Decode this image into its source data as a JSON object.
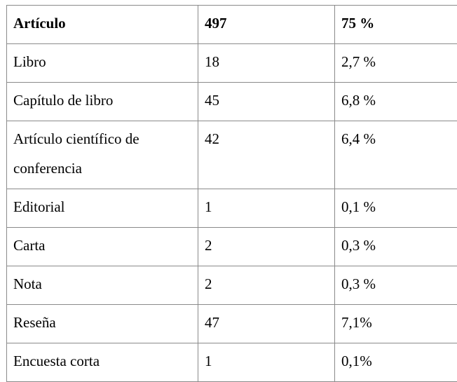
{
  "table": {
    "rows": [
      {
        "label": "Artículo",
        "count": "497",
        "percent": "75 %"
      },
      {
        "label": "Libro",
        "count": "18",
        "percent": "2,7 %"
      },
      {
        "label": "Capítulo de libro",
        "count": "45",
        "percent": "6,8 %"
      },
      {
        "label": "Artículo científico de conferencia",
        "count": "42",
        "percent": "6,4 %"
      },
      {
        "label": "Editorial",
        "count": "1",
        "percent": "0,1 %"
      },
      {
        "label": "Carta",
        "count": "2",
        "percent": "0,3 %"
      },
      {
        "label": "Nota",
        "count": "2",
        "percent": "0,3 %"
      },
      {
        "label": "Reseña",
        "count": "47",
        "percent": "7,1%"
      },
      {
        "label": "Encuesta corta",
        "count": "1",
        "percent": "0,1%"
      }
    ]
  }
}
